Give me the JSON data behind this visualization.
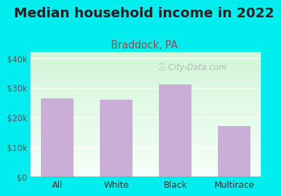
{
  "title": "Median household income in 2022",
  "subtitle": "Braddock, PA",
  "categories": [
    "All",
    "White",
    "Black",
    "Multirace"
  ],
  "values": [
    26500,
    26000,
    31000,
    17000
  ],
  "bar_color": "#c9aed6",
  "title_fontsize": 14,
  "subtitle_fontsize": 10.5,
  "subtitle_color": "#8B5050",
  "title_color": "#222222",
  "ylabel_color": "#555555",
  "xlabel_color": "#333333",
  "background_outer": "#00EEEE",
  "ylim": [
    0,
    42000
  ],
  "yticks": [
    0,
    10000,
    20000,
    30000,
    40000
  ],
  "ytick_labels": [
    "$0",
    "$10k",
    "$20k",
    "$30k",
    "$40k"
  ],
  "watermark": "City-Data.com"
}
